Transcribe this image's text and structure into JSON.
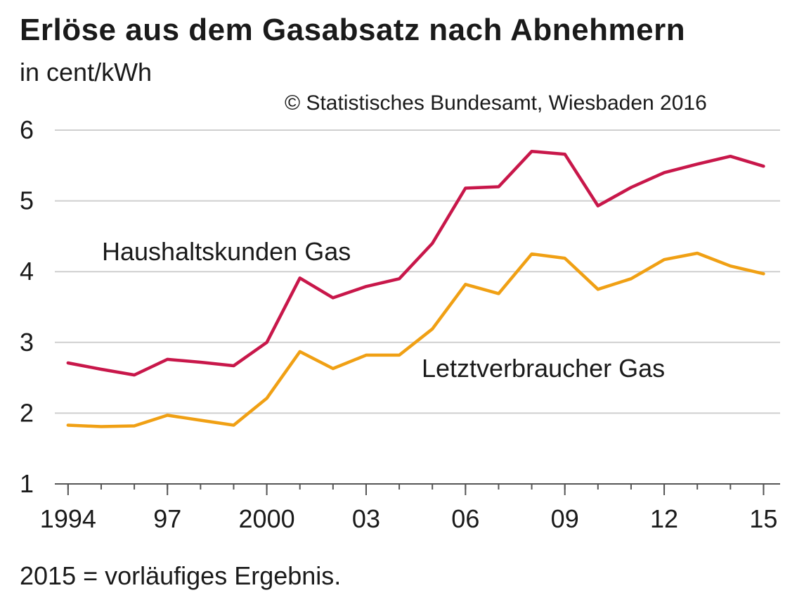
{
  "header": {
    "title": "Erlöse aus dem Gasabsatz nach Abnehmern",
    "unit": "in cent/kWh",
    "source": "© Statistisches Bundesamt, Wiesbaden 2016"
  },
  "footnote": "2015 = vorläufiges Ergebnis.",
  "chart_data": {
    "type": "line",
    "x": [
      1994,
      1995,
      1996,
      1997,
      1998,
      1999,
      2000,
      2001,
      2002,
      2003,
      2004,
      2005,
      2006,
      2007,
      2008,
      2009,
      2010,
      2011,
      2012,
      2013,
      2014,
      2015
    ],
    "x_ticks": [
      {
        "value": 1994,
        "label": "1994"
      },
      {
        "value": 1997,
        "label": "97"
      },
      {
        "value": 2000,
        "label": "2000"
      },
      {
        "value": 2003,
        "label": "03"
      },
      {
        "value": 2006,
        "label": "06"
      },
      {
        "value": 2009,
        "label": "09"
      },
      {
        "value": 2012,
        "label": "12"
      },
      {
        "value": 2015,
        "label": "15"
      }
    ],
    "y_ticks": [
      1,
      2,
      3,
      4,
      5,
      6
    ],
    "ylim": [
      1,
      6
    ],
    "xlim": [
      1993.6,
      2015.5
    ],
    "grid": true,
    "series": [
      {
        "name": "Haushaltskunden Gas",
        "color": "#c8174a",
        "values": [
          2.71,
          2.62,
          2.54,
          2.76,
          2.72,
          2.67,
          3.0,
          3.91,
          3.63,
          3.79,
          3.9,
          4.4,
          5.18,
          5.2,
          5.7,
          5.66,
          4.93,
          5.19,
          5.4,
          5.52,
          5.63,
          5.49
        ]
      },
      {
        "name": "Letztverbraucher Gas",
        "color": "#f0a014",
        "values": [
          1.83,
          1.81,
          1.82,
          1.97,
          1.9,
          1.83,
          2.21,
          2.87,
          2.63,
          2.82,
          2.82,
          3.19,
          3.82,
          3.69,
          4.25,
          4.19,
          3.75,
          3.9,
          4.17,
          4.26,
          4.08,
          3.97
        ]
      }
    ]
  }
}
